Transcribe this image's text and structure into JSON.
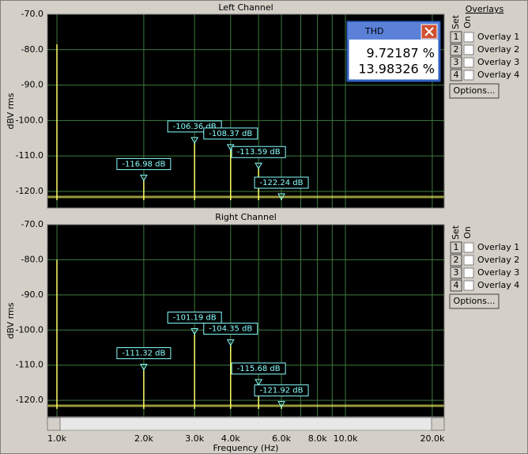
{
  "x_axis": {
    "label": "Frequency (Hz)",
    "xlim": [
      927,
      22000
    ],
    "xticks": [
      {
        "value": 1000,
        "label": "1.0k"
      },
      {
        "value": 2000,
        "label": "2.0k"
      },
      {
        "value": 3000,
        "label": "3.0k"
      },
      {
        "value": 4000,
        "label": "4.0k"
      },
      {
        "value": 6000,
        "label": "6.0k"
      },
      {
        "value": 8000,
        "label": "8.0k"
      },
      {
        "value": 10000,
        "label": "10.0k"
      },
      {
        "value": 20000,
        "label": "20.0k"
      }
    ],
    "xminor": [
      5000,
      7000,
      9000
    ],
    "log": true
  },
  "chart_data": [
    {
      "type": "spectrum",
      "title": "Left Channel",
      "ylabel": "dBV rms",
      "ylim": [
        -124.7,
        -70
      ],
      "yticks": [
        {
          "value": -70,
          "label": "-70.0"
        },
        {
          "value": -80,
          "label": "-80.0"
        },
        {
          "value": -90,
          "label": "-90.0"
        },
        {
          "value": -100,
          "label": "-100.0"
        },
        {
          "value": -110,
          "label": "-110.0"
        },
        {
          "value": -120,
          "label": "-120.0"
        }
      ],
      "grid": true,
      "color": "#ffff66",
      "fundamental": {
        "x": [
          1000
        ],
        "values": [
          -78.5
        ]
      },
      "harmonics": {
        "x": [
          2000,
          3000,
          4000,
          5000,
          6000
        ],
        "values": [
          -116.98,
          -106.36,
          -108.37,
          -113.59,
          -122.24
        ],
        "value_labels": [
          "-116.98 dB",
          "-106.36 dB",
          "-108.37 dB",
          "-113.59 dB",
          "-122.24 dB"
        ]
      }
    },
    {
      "type": "spectrum",
      "title": "Right Channel",
      "ylabel": "dBV rms",
      "ylim": [
        -124.7,
        -70
      ],
      "yticks": [
        {
          "value": -70,
          "label": "-70.0"
        },
        {
          "value": -80,
          "label": "-80.0"
        },
        {
          "value": -90,
          "label": "-90.0"
        },
        {
          "value": -100,
          "label": "-100.0"
        },
        {
          "value": -110,
          "label": "-110.0"
        },
        {
          "value": -120,
          "label": "-120.0"
        }
      ],
      "grid": true,
      "color": "#ffff66",
      "fundamental": {
        "x": [
          1000
        ],
        "values": [
          -80
        ]
      },
      "harmonics": {
        "x": [
          2000,
          3000,
          4000,
          5000,
          6000
        ],
        "values": [
          -111.32,
          -101.19,
          -104.35,
          -115.68,
          -121.92
        ],
        "value_labels": [
          "-111.32 dB",
          "-101.19 dB",
          "-104.35 dB",
          "-115.68 dB",
          "-121.92 dB"
        ]
      }
    }
  ],
  "thd_window": {
    "title": "THD",
    "values": [
      "9.72187 %",
      "13.98326 %"
    ]
  },
  "overlays_panel": {
    "title": "Overlays",
    "set": "Set",
    "on": "On",
    "options": "Options...",
    "rows": [
      {
        "num": "1",
        "name": "Overlay 1",
        "color": "#e00000"
      },
      {
        "num": "2",
        "name": "Overlay 2",
        "color": "#e000e0"
      },
      {
        "num": "3",
        "name": "Overlay 3",
        "color": "#0000e0"
      },
      {
        "num": "4",
        "name": "Overlay 4",
        "color": "#00c0c0"
      }
    ]
  }
}
